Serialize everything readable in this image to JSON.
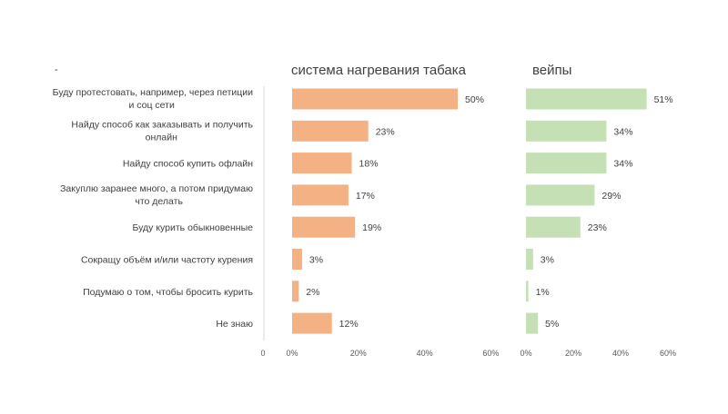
{
  "chart_data": [
    {
      "type": "bar",
      "orientation": "horizontal",
      "title": "система нагревания табака",
      "categories": [
        [
          "Буду протестовать, например, через петиции",
          "и соц сети"
        ],
        [
          "Найду способ как заказывать и получить",
          "онлайн"
        ],
        [
          "Найду способ купить офлайн"
        ],
        [
          "Закуплю заранее много, а потом придумаю",
          "что делать"
        ],
        [
          "Буду курить обыкновенные"
        ],
        [
          "Сокращу объём и/или частоту курения"
        ],
        [
          "Подумаю о том, чтобы бросить курить"
        ],
        [
          "Не знаю"
        ]
      ],
      "values": [
        50,
        23,
        18,
        17,
        19,
        3,
        2,
        12
      ],
      "data_labels": [
        "50%",
        "23%",
        "18%",
        "17%",
        "19%",
        "3%",
        "2%",
        "12%"
      ],
      "xlim": [
        0,
        60
      ],
      "xticks": [
        "0%",
        "20%",
        "40%",
        "60%"
      ],
      "color": "#f4b183"
    },
    {
      "type": "bar",
      "orientation": "horizontal",
      "title": "вейпы",
      "values": [
        51,
        34,
        34,
        29,
        23,
        3,
        1,
        5
      ],
      "data_labels": [
        "51%",
        "34%",
        "34%",
        "29%",
        "23%",
        "3%",
        "1%",
        "5%"
      ],
      "xlim": [
        0,
        60
      ],
      "xticks": [
        "0%",
        "20%",
        "40%",
        "60%"
      ],
      "color": "#c5e0b4"
    }
  ],
  "axis_origin_label": "0",
  "corner_mark": "-"
}
